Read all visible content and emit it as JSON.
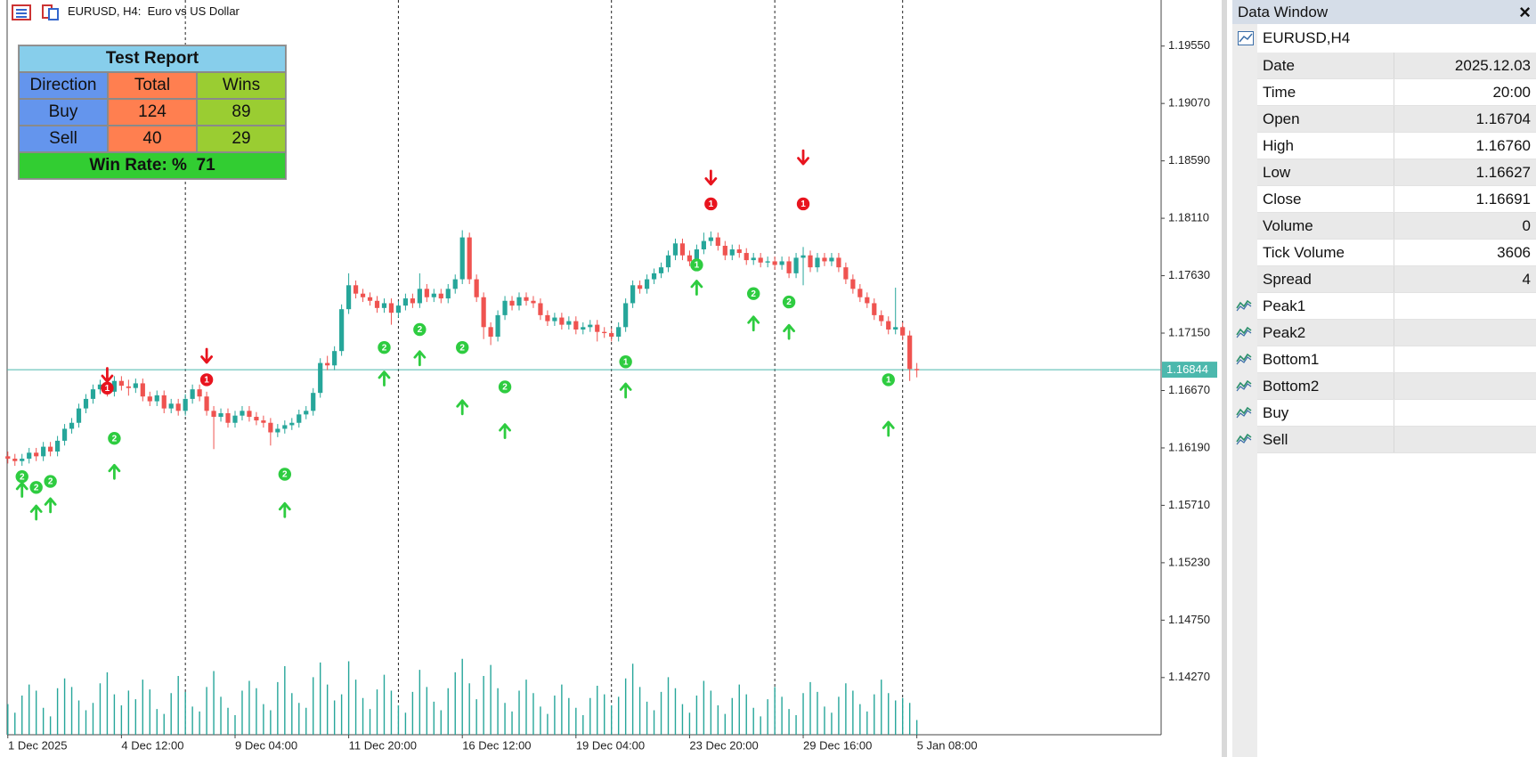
{
  "header": {
    "title": "EURUSD, H4:  Euro vs US Dollar"
  },
  "report": {
    "title": "Test Report",
    "columns": [
      "Direction",
      "Total",
      "Wins"
    ],
    "rows": [
      [
        "Buy",
        "124",
        "89"
      ],
      [
        "Sell",
        "40",
        "29"
      ]
    ],
    "footer": "Win Rate: %  71"
  },
  "chart_data": {
    "type": "candlestick",
    "open": [
      1.1612,
      1.161,
      1.1608,
      1.161,
      1.1615,
      1.1612,
      1.162,
      1.1616,
      1.1625,
      1.1635,
      1.164,
      1.1652,
      1.166,
      1.1668,
      1.1672,
      1.1666,
      1.1675,
      1.16704,
      1.16691,
      1.1673,
      1.1662,
      1.1658,
      1.1663,
      1.1652,
      1.1656,
      1.165,
      1.166,
      1.1668,
      1.1662,
      1.165,
      1.1645,
      1.1648,
      1.164,
      1.1646,
      1.165,
      1.1645,
      1.1642,
      1.164,
      1.1632,
      1.1635,
      1.1638,
      1.164,
      1.1647,
      1.165,
      1.1665,
      1.169,
      1.1688,
      1.17,
      1.1735,
      1.1755,
      1.1748,
      1.1745,
      1.1742,
      1.1736,
      1.174,
      1.1732,
      1.1738,
      1.1744,
      1.174,
      1.1752,
      1.1745,
      1.1748,
      1.1744,
      1.1752,
      1.176,
      1.1795,
      1.176,
      1.1745,
      1.172,
      1.1712,
      1.173,
      1.1742,
      1.1738,
      1.1745,
      1.1742,
      1.174,
      1.173,
      1.1725,
      1.1728,
      1.1722,
      1.1725,
      1.1718,
      1.172,
      1.1722,
      1.1716,
      1.1715,
      1.1712,
      1.172,
      1.174,
      1.1755,
      1.1752,
      1.176,
      1.1765,
      1.177,
      1.178,
      1.179,
      1.178,
      1.1775,
      1.1785,
      1.1792,
      1.1795,
      1.1788,
      1.178,
      1.1785,
      1.1782,
      1.1776,
      1.1778,
      1.1774,
      1.1775,
      1.1772,
      1.1775,
      1.1765,
      1.1778,
      1.178,
      1.177,
      1.1778,
      1.1775,
      1.1778,
      1.177,
      1.176,
      1.1752,
      1.1745,
      1.174,
      1.173,
      1.1725,
      1.1718,
      1.172,
      1.1713,
      1.1685
    ],
    "high": [
      1.1616,
      1.1614,
      1.1614,
      1.1619,
      1.1619,
      1.1624,
      1.1624,
      1.1629,
      1.1639,
      1.1644,
      1.1656,
      1.1664,
      1.1672,
      1.1676,
      1.1676,
      1.1679,
      1.1679,
      1.1676,
      1.1677,
      1.1677,
      1.1666,
      1.1667,
      1.1667,
      1.166,
      1.166,
      1.1664,
      1.1672,
      1.1672,
      1.1666,
      1.1654,
      1.1652,
      1.1652,
      1.165,
      1.1654,
      1.1654,
      1.1649,
      1.1646,
      1.1644,
      1.1639,
      1.1642,
      1.1644,
      1.1651,
      1.1654,
      1.1669,
      1.1694,
      1.1696,
      1.1704,
      1.1739,
      1.1765,
      1.1759,
      1.1752,
      1.1749,
      1.1746,
      1.1744,
      1.1744,
      1.1742,
      1.1748,
      1.1748,
      1.1765,
      1.1756,
      1.1752,
      1.1752,
      1.1756,
      1.1764,
      1.1801,
      1.1799,
      1.1764,
      1.1749,
      1.1724,
      1.1734,
      1.1746,
      1.1746,
      1.1749,
      1.1749,
      1.1746,
      1.1744,
      1.1734,
      1.1732,
      1.1732,
      1.1729,
      1.1729,
      1.1724,
      1.1726,
      1.1726,
      1.172,
      1.1719,
      1.1724,
      1.1744,
      1.1759,
      1.1759,
      1.1764,
      1.1769,
      1.1774,
      1.1784,
      1.1794,
      1.1794,
      1.1784,
      1.1789,
      1.1799,
      1.18,
      1.1799,
      1.1792,
      1.1789,
      1.1789,
      1.1786,
      1.1782,
      1.1782,
      1.1779,
      1.1779,
      1.1779,
      1.1779,
      1.1782,
      1.1787,
      1.1784,
      1.1782,
      1.1782,
      1.1782,
      1.1782,
      1.1774,
      1.1764,
      1.1756,
      1.1749,
      1.1744,
      1.1734,
      1.1729,
      1.1753,
      1.1724,
      1.1717,
      1.169
    ],
    "low": [
      1.1606,
      1.1604,
      1.1604,
      1.1606,
      1.1608,
      1.1608,
      1.1612,
      1.1612,
      1.1621,
      1.1631,
      1.1636,
      1.1648,
      1.1656,
      1.1664,
      1.1662,
      1.1662,
      1.1667,
      1.16627,
      1.1665,
      1.1658,
      1.1654,
      1.1654,
      1.1648,
      1.1648,
      1.1646,
      1.1646,
      1.1656,
      1.1658,
      1.1646,
      1.1618,
      1.1641,
      1.1636,
      1.1636,
      1.1642,
      1.1641,
      1.1638,
      1.1636,
      1.1621,
      1.1628,
      1.1631,
      1.1634,
      1.1636,
      1.1643,
      1.1646,
      1.1661,
      1.1684,
      1.1684,
      1.1696,
      1.1731,
      1.1744,
      1.1741,
      1.1738,
      1.1732,
      1.1732,
      1.1722,
      1.1728,
      1.1734,
      1.1736,
      1.1736,
      1.1741,
      1.1741,
      1.174,
      1.174,
      1.1748,
      1.1756,
      1.1756,
      1.1741,
      1.171,
      1.1705,
      1.1708,
      1.1726,
      1.1734,
      1.1734,
      1.1738,
      1.1736,
      1.1726,
      1.1721,
      1.1721,
      1.1718,
      1.1718,
      1.1714,
      1.1714,
      1.1716,
      1.1708,
      1.1711,
      1.1708,
      1.1708,
      1.1716,
      1.1736,
      1.1748,
      1.1748,
      1.1756,
      1.1761,
      1.1766,
      1.1776,
      1.1776,
      1.1771,
      1.1771,
      1.1781,
      1.1788,
      1.1784,
      1.1776,
      1.1776,
      1.1778,
      1.1772,
      1.1772,
      1.177,
      1.177,
      1.1768,
      1.1768,
      1.1761,
      1.1761,
      1.1755,
      1.1766,
      1.1766,
      1.1771,
      1.1771,
      1.1766,
      1.1756,
      1.1748,
      1.1741,
      1.1736,
      1.1726,
      1.1721,
      1.1714,
      1.1714,
      1.1709,
      1.1675,
      1.1678
    ],
    "close": [
      1.161,
      1.1608,
      1.161,
      1.1615,
      1.1612,
      1.162,
      1.1616,
      1.1625,
      1.1635,
      1.164,
      1.1652,
      1.166,
      1.1668,
      1.1672,
      1.1666,
      1.1675,
      1.1671,
      1.16691,
      1.1673,
      1.1662,
      1.1658,
      1.1663,
      1.1652,
      1.1656,
      1.165,
      1.166,
      1.1668,
      1.1662,
      1.165,
      1.1645,
      1.1648,
      1.164,
      1.1646,
      1.165,
      1.1645,
      1.1642,
      1.164,
      1.1632,
      1.1635,
      1.1638,
      1.164,
      1.1647,
      1.165,
      1.1665,
      1.169,
      1.1688,
      1.17,
      1.1735,
      1.1755,
      1.1748,
      1.1745,
      1.1742,
      1.1736,
      1.174,
      1.1732,
      1.1738,
      1.1744,
      1.174,
      1.1752,
      1.1745,
      1.1748,
      1.1744,
      1.1752,
      1.176,
      1.1795,
      1.176,
      1.1745,
      1.172,
      1.1712,
      1.173,
      1.1742,
      1.1738,
      1.1745,
      1.1742,
      1.174,
      1.173,
      1.1725,
      1.1728,
      1.1722,
      1.1725,
      1.1718,
      1.172,
      1.1722,
      1.1716,
      1.1715,
      1.1712,
      1.172,
      1.174,
      1.1755,
      1.1752,
      1.176,
      1.1765,
      1.177,
      1.178,
      1.179,
      1.178,
      1.1775,
      1.1785,
      1.1792,
      1.1795,
      1.1788,
      1.178,
      1.1785,
      1.1782,
      1.1776,
      1.1778,
      1.1774,
      1.1775,
      1.1772,
      1.1775,
      1.1765,
      1.1778,
      1.178,
      1.177,
      1.1778,
      1.1775,
      1.1778,
      1.177,
      1.176,
      1.1752,
      1.1745,
      1.174,
      1.173,
      1.1725,
      1.1718,
      1.172,
      1.1713,
      1.1685,
      1.1684
    ],
    "volume": [
      2500,
      1800,
      3200,
      4100,
      3600,
      2200,
      1500,
      3800,
      4600,
      3900,
      2800,
      2000,
      2600,
      4200,
      5100,
      3300,
      2400,
      3606,
      2900,
      4500,
      3700,
      2100,
      1700,
      3400,
      4800,
      3500,
      2300,
      1900,
      3900,
      5200,
      3100,
      2200,
      1600,
      3600,
      4400,
      3800,
      2500,
      2000,
      4300,
      5600,
      3400,
      2600,
      2200,
      4700,
      5900,
      4100,
      2800,
      3300,
      6000,
      4500,
      3000,
      2100,
      3700,
      4900,
      3600,
      2400,
      1800,
      3500,
      5300,
      3900,
      2700,
      2000,
      3800,
      5100,
      6200,
      4200,
      2900,
      4800,
      5700,
      3800,
      2600,
      1900,
      3600,
      4500,
      3400,
      2300,
      1700,
      3200,
      4100,
      3000,
      2200,
      1600,
      3000,
      4000,
      3300,
      2400,
      3100,
      4600,
      5800,
      3900,
      2700,
      2000,
      3500,
      4700,
      3800,
      2500,
      1800,
      3200,
      4400,
      3600,
      2400,
      1700,
      3000,
      4100,
      3300,
      2200,
      1500,
      2900,
      3900,
      3100,
      2100,
      1600,
      3400,
      4300,
      3500,
      2300,
      1800,
      3100,
      4200,
      3600,
      2500,
      1900,
      3300,
      4500,
      3400,
      2800,
      3000,
      2600,
      1200
    ],
    "vlim": [
      0,
      8000
    ],
    "xlim": [
      -1.1,
      162.4
    ],
    "ylim": [
      1.13792,
      1.19935
    ],
    "yticks": [
      {
        "value": 1.1955,
        "label": "1.19550"
      },
      {
        "value": 1.1907,
        "label": "1.19070"
      },
      {
        "value": 1.1859,
        "label": "1.18590"
      },
      {
        "value": 1.1811,
        "label": "1.18110"
      },
      {
        "value": 1.1763,
        "label": "1.17630"
      },
      {
        "value": 1.1715,
        "label": "1.17150"
      },
      {
        "value": 1.1667,
        "label": "1.16670"
      },
      {
        "value": 1.1619,
        "label": "1.16190"
      },
      {
        "value": 1.1571,
        "label": "1.15710"
      },
      {
        "value": 1.1523,
        "label": "1.15230"
      },
      {
        "value": 1.1475,
        "label": "1.14750"
      },
      {
        "value": 1.1427,
        "label": "1.14270"
      }
    ],
    "xticks": [
      {
        "value": 0,
        "label": "1 Dec 2025"
      },
      {
        "value": 16,
        "label": "4 Dec 12:00"
      },
      {
        "value": 32,
        "label": "9 Dec 04:00"
      },
      {
        "value": 48,
        "label": "11 Dec 20:00"
      },
      {
        "value": 64,
        "label": "16 Dec 12:00"
      },
      {
        "value": 80,
        "label": "19 Dec 04:00"
      },
      {
        "value": 96,
        "label": "23 Dec 20:00"
      },
      {
        "value": 112,
        "label": "29 Dec 16:00"
      },
      {
        "value": 128,
        "label": "5 Jan 08:00"
      }
    ],
    "separators": [
      25,
      55,
      85,
      108,
      126
    ],
    "current_price": 1.16844,
    "signals": [
      {
        "side": "buy",
        "index": 2,
        "label": 2,
        "circle": 1.1595,
        "arrow": 1.1584
      },
      {
        "side": "buy",
        "index": 4,
        "label": 2,
        "circle": 1.1586,
        "arrow": 1.1565
      },
      {
        "side": "buy",
        "index": 6,
        "label": 2,
        "circle": 1.1591,
        "arrow": 1.1571
      },
      {
        "side": "buy",
        "index": 15,
        "label": 2,
        "circle": 1.1627,
        "arrow": 1.1599
      },
      {
        "side": "buy",
        "index": 39,
        "label": 2,
        "circle": 1.1597,
        "arrow": 1.1567
      },
      {
        "side": "buy",
        "index": 53,
        "label": 2,
        "circle": 1.1703,
        "arrow": 1.1677
      },
      {
        "side": "buy",
        "index": 58,
        "label": 2,
        "circle": 1.1718,
        "arrow": 1.1694
      },
      {
        "side": "buy",
        "index": 64,
        "label": 2,
        "circle": 1.1703,
        "arrow": 1.1653
      },
      {
        "side": "buy",
        "index": 70,
        "label": 2,
        "circle": 1.167,
        "arrow": 1.1633
      },
      {
        "side": "buy",
        "index": 87,
        "label": 1,
        "circle": 1.1691,
        "arrow": 1.1667
      },
      {
        "side": "buy",
        "index": 97,
        "label": 1,
        "circle": 1.1772,
        "arrow": 1.1753
      },
      {
        "side": "buy",
        "index": 105,
        "label": 2,
        "circle": 1.1748,
        "arrow": 1.1723
      },
      {
        "side": "buy",
        "index": 110,
        "label": 2,
        "circle": 1.1741,
        "arrow": 1.1716
      },
      {
        "side": "buy",
        "index": 124,
        "label": 1,
        "circle": 1.1676,
        "arrow": 1.1635
      },
      {
        "side": "sell",
        "index": 14,
        "label": 1,
        "circle": 1.1669,
        "arrow": 1.168
      },
      {
        "side": "sell",
        "index": 28,
        "label": 1,
        "circle": 1.1676,
        "arrow": 1.1696
      },
      {
        "side": "sell",
        "index": 99,
        "label": 1,
        "circle": 1.1823,
        "arrow": 1.1845
      },
      {
        "side": "sell",
        "index": 112,
        "label": 1,
        "circle": 1.1823,
        "arrow": 1.1862
      }
    ],
    "colors": {
      "up": "#26a69a",
      "down": "#ef5350",
      "volume": "#26a69a",
      "price_line": "#4cb8ad",
      "buy": "#2ecc40",
      "sell": "#e8141e"
    }
  },
  "data_window": {
    "title": "Data Window",
    "close": "×",
    "symbol": "EURUSD,H4",
    "rows": [
      [
        "Date",
        "2025.12.03"
      ],
      [
        "Time",
        "20:00"
      ],
      [
        "Open",
        "1.16704"
      ],
      [
        "High",
        "1.16760"
      ],
      [
        "Low",
        "1.16627"
      ],
      [
        "Close",
        "1.16691"
      ],
      [
        "Volume",
        "0"
      ],
      [
        "Tick Volume",
        "3606"
      ],
      [
        "Spread",
        "4"
      ],
      [
        "Peak1"
      ],
      [
        "Peak2"
      ],
      [
        "Bottom1"
      ],
      [
        "Bottom2"
      ],
      [
        "Buy"
      ],
      [
        "Sell"
      ]
    ]
  }
}
